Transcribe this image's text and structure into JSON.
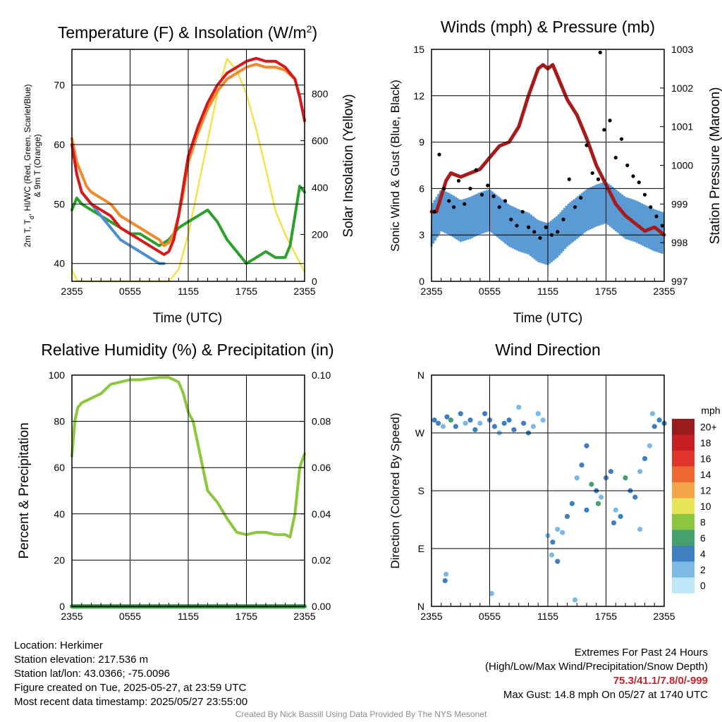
{
  "panels": {
    "temperature": {
      "title": "Temperature (F) & Insolation (W/m",
      "title_sup": "2",
      "title_close": ")",
      "ylabel_left_line1": "2m T, T",
      "ylabel_left_sub": "d",
      "ylabel_left_line1b": ", HI/WC (Red, Green, Scarlet/Blue)",
      "ylabel_left_line2": "& 9m T (Orange)",
      "ylabel_right": "Solar Insolation (Yellow)",
      "xlabel": "Time (UTC)"
    },
    "winds": {
      "title": "Winds (mph) & Pressure (mb)",
      "ylabel_left": "Sonic Wind & Gust (Blue, Black)",
      "ylabel_right": "Station Pressure (Maroon)",
      "xlabel": "Time (UTC)"
    },
    "humidity": {
      "title": "Relative Humidity (%) & Precipitation (in)",
      "ylabel_left": "Percent & Precipitation"
    },
    "direction": {
      "title": "Wind Direction",
      "ylabel_left": "Direction (Colored By Speed)",
      "legend_title": "mph"
    }
  },
  "footer": {
    "location": "Location: Herkimer",
    "elevation": "Station elevation: 217.536 m",
    "latlon": "Station lat/lon: 43.0366; -75.0096",
    "created": "Figure created on Tue, 2025-05-27, at 23:59 UTC",
    "recent": "Most recent data timestamp: 2025/05/27 23:55:00",
    "extremes_title": "Extremes For Past 24 Hours",
    "extremes_sub": "(High/Low/Max Wind/Precipitation/Snow Depth)",
    "extremes_values": "75.3/41.1/7.8/0/-999",
    "max_gust": "Max Gust: 14.8 mph On 05/27 at 1740 UTC",
    "credit": "Created By Nick Bassill Using Data Provided By The NYS Mesonet"
  },
  "colors": {
    "temp": "#d7191c",
    "dewpoint": "#2ca02c",
    "heat_index": "#c01f26",
    "wind_chill": "#4a90d0",
    "temp_9m": "#f08a2a",
    "insolation": "#f5e14a",
    "wind": "#5b9bd5",
    "gust": "#000000",
    "pressure": "#a61c1c",
    "rh": "#8dc63f",
    "precip": "#2e9e3e"
  },
  "chart_data": [
    {
      "type": "line",
      "panel": "temperature",
      "x_ticks": [
        "2355",
        "0555",
        "1155",
        "1755",
        "2355"
      ],
      "x_hours": [
        0,
        6,
        12,
        18,
        24
      ],
      "xlim_hours": [
        0,
        24
      ],
      "ylim": [
        37,
        76
      ],
      "yticks": [
        40,
        50,
        60,
        70
      ],
      "y2lim": [
        0,
        990
      ],
      "y2ticks": [
        0,
        200,
        400,
        600,
        800
      ],
      "grid": true,
      "series": [
        {
          "key": "temp",
          "axis": "left",
          "x": [
            0,
            0.5,
            1,
            1.5,
            2,
            3,
            4,
            5,
            6,
            7,
            8,
            9,
            9.5,
            10,
            10.5,
            11,
            11.5,
            12,
            13,
            14,
            15,
            16,
            17,
            18,
            19,
            20,
            21,
            22,
            23,
            23.5,
            24
          ],
          "y": [
            60,
            55,
            52,
            51,
            50,
            49,
            48,
            46,
            45,
            44,
            43,
            42,
            41.5,
            42,
            44,
            48,
            53,
            58,
            63,
            67,
            70,
            72,
            73,
            74,
            74.5,
            74,
            74,
            73,
            71,
            68,
            64
          ]
        },
        {
          "key": "temp_9m",
          "axis": "left",
          "x": [
            0,
            0.5,
            1,
            1.5,
            2,
            3,
            4,
            5,
            6,
            7,
            8,
            9,
            9.5,
            10,
            10.5,
            11,
            11.5,
            12,
            13,
            14,
            15,
            16,
            17,
            18,
            19,
            20,
            21,
            22,
            23,
            23.5,
            24
          ],
          "y": [
            61,
            57,
            55,
            53,
            52,
            51,
            50,
            48,
            47,
            46,
            45,
            44,
            43,
            43.5,
            45,
            48,
            52,
            57,
            62,
            66,
            69,
            71,
            72,
            73,
            73.5,
            73,
            73,
            72.5,
            71,
            68,
            64
          ]
        },
        {
          "key": "wind_chill",
          "axis": "left",
          "x": [
            1,
            2,
            3,
            4,
            5,
            6,
            7,
            8,
            9,
            9.5
          ],
          "y": [
            52,
            50,
            48,
            46,
            44,
            43,
            42,
            41,
            40,
            40
          ]
        },
        {
          "key": "dewpoint",
          "axis": "left",
          "x": [
            0,
            0.5,
            1,
            2,
            3,
            4,
            5,
            6,
            7,
            8,
            9,
            10,
            11,
            12,
            13,
            14,
            15,
            16,
            17,
            18,
            19,
            20,
            21,
            22,
            22.5,
            23,
            23.5,
            24
          ],
          "y": [
            49,
            51,
            50,
            49,
            48,
            47,
            46,
            45,
            45,
            44,
            43,
            44,
            46,
            47,
            48,
            49,
            47,
            44,
            42,
            40,
            41,
            42,
            41,
            41,
            43,
            48,
            53,
            52
          ]
        },
        {
          "key": "insolation",
          "axis": "right",
          "x": [
            0,
            0.5,
            1,
            2,
            3,
            4,
            5,
            6,
            7,
            8,
            9,
            10,
            11,
            12,
            13,
            14,
            15,
            16,
            17,
            18,
            19,
            20,
            21,
            22,
            23,
            24
          ],
          "y": [
            50,
            5,
            0,
            0,
            0,
            0,
            0,
            0,
            0,
            0,
            0,
            0,
            50,
            200,
            400,
            600,
            800,
            950,
            900,
            800,
            650,
            480,
            300,
            200,
            120,
            40
          ]
        }
      ]
    },
    {
      "type": "line",
      "panel": "winds",
      "x_ticks": [
        "2355",
        "0555",
        "1155",
        "1755",
        "2355"
      ],
      "x_hours": [
        0,
        6,
        12,
        18,
        24
      ],
      "xlim_hours": [
        0,
        24
      ],
      "ylim": [
        0,
        15
      ],
      "yticks": [
        0,
        3,
        6,
        9,
        12,
        15
      ],
      "y2lim": [
        997,
        1003
      ],
      "y2ticks": [
        997,
        998,
        999,
        1000,
        1001,
        1002,
        1003
      ],
      "grid": true,
      "series": [
        {
          "key": "wind",
          "axis": "left",
          "name": "Sonic Wind",
          "x": [
            0,
            1,
            2,
            3,
            4,
            5,
            6,
            7,
            8,
            9,
            10,
            11,
            12,
            13,
            14,
            15,
            16,
            17,
            18,
            19,
            20,
            21,
            22,
            23,
            24
          ],
          "y": [
            3.5,
            4.5,
            4.2,
            3.8,
            4,
            4.3,
            4.5,
            4,
            3.5,
            3.2,
            3,
            2.5,
            2.3,
            2.8,
            3.5,
            4,
            4.5,
            4.8,
            5,
            4.5,
            4,
            3.8,
            3.5,
            3.2,
            3
          ]
        },
        {
          "key": "gust",
          "axis": "left",
          "name": "Gust",
          "style": "points",
          "x": [
            0.3,
            0.8,
            1.3,
            1.8,
            2.3,
            2.8,
            3.4,
            4,
            4.6,
            5.2,
            5.8,
            6.4,
            7,
            7.6,
            8.2,
            8.8,
            9.4,
            10,
            10.6,
            11.2,
            11.8,
            12.4,
            13,
            13.6,
            14.2,
            14.8,
            15.4,
            16,
            16.6,
            17.2,
            17.4,
            17.8,
            18.4,
            19,
            19.6,
            20.2,
            20.8,
            21.4,
            22,
            22.6,
            23.2,
            23.8
          ],
          "y": [
            4.5,
            8.2,
            6,
            5.2,
            4.8,
            6.5,
            5,
            6,
            7.2,
            5.6,
            6.2,
            5.5,
            4.8,
            5.2,
            4,
            3.6,
            4.5,
            3.5,
            3.2,
            2.8,
            3.5,
            3,
            3.2,
            4,
            6.6,
            4.8,
            5.4,
            8.8,
            7,
            6.6,
            14.8,
            9.8,
            10.4,
            8,
            9.2,
            7.5,
            6.8,
            6.4,
            5.6,
            4.8,
            4.2,
            3.6
          ]
        },
        {
          "key": "pressure",
          "axis": "right",
          "name": "Station Pressure",
          "x": [
            0,
            0.5,
            1,
            1.5,
            2,
            3,
            4,
            5,
            6,
            7,
            8,
            9,
            10,
            11,
            11.5,
            12,
            12.5,
            13,
            14,
            15,
            16,
            17,
            18,
            19,
            20,
            21,
            22,
            23,
            24
          ],
          "y": [
            998.8,
            998.8,
            999.2,
            999.6,
            999.8,
            999.7,
            999.8,
            999.9,
            1000.2,
            1000.5,
            1000.6,
            1001.0,
            1001.8,
            1002.5,
            1002.6,
            1002.5,
            1002.6,
            1002.3,
            1001.7,
            1001.3,
            1000.7,
            1000.0,
            999.5,
            999.0,
            998.7,
            998.5,
            998.3,
            998.4,
            998.2
          ]
        }
      ]
    },
    {
      "type": "line",
      "panel": "humidity",
      "x_ticks": [
        "2355",
        "0555",
        "1155",
        "1755",
        "2355"
      ],
      "x_hours": [
        0,
        6,
        12,
        18,
        24
      ],
      "xlim_hours": [
        0,
        24
      ],
      "ylim": [
        0,
        100
      ],
      "yticks": [
        0,
        20,
        40,
        60,
        80,
        100
      ],
      "y2lim": [
        0,
        0.1
      ],
      "y2ticks": [
        0.0,
        0.02,
        0.04,
        0.06,
        0.08,
        0.1
      ],
      "y2ticklabels": [
        "0.00",
        "0.02",
        "0.04",
        "0.06",
        "0.08",
        "0.10"
      ],
      "grid": true,
      "series": [
        {
          "key": "rh",
          "axis": "left",
          "name": "Relative Humidity",
          "x": [
            0,
            0.3,
            0.6,
            1,
            2,
            3,
            4,
            5,
            6,
            7,
            8,
            9,
            10,
            11,
            11.5,
            12,
            12.5,
            13,
            14,
            15,
            16,
            17,
            18,
            19,
            20,
            21,
            22,
            22.5,
            23,
            23.5,
            24
          ],
          "y": [
            65,
            80,
            86,
            88,
            90,
            92,
            96,
            97,
            98,
            98,
            98.5,
            99,
            99,
            97,
            92,
            84,
            80,
            70,
            50,
            45,
            38,
            32,
            31,
            32,
            32,
            31,
            31,
            30,
            40,
            60,
            66
          ]
        },
        {
          "key": "precip",
          "axis": "right",
          "name": "Precipitation",
          "x": [
            0,
            24
          ],
          "y": [
            0,
            0
          ]
        }
      ]
    },
    {
      "type": "scatter",
      "panel": "direction",
      "x_ticks": [
        "2355",
        "0555",
        "1155",
        "1755",
        "2355"
      ],
      "x_hours": [
        0,
        6,
        12,
        18,
        24
      ],
      "xlim_hours": [
        0,
        24
      ],
      "ylim": [
        0,
        360
      ],
      "yticks": [
        0,
        90,
        180,
        270,
        360
      ],
      "yticklabels": [
        "N",
        "E",
        "S",
        "W",
        "N"
      ],
      "grid": true,
      "color_scale": {
        "labels": [
          "0",
          "2",
          "4",
          "6",
          "8",
          "10",
          "12",
          "14",
          "16",
          "18",
          "20+"
        ],
        "colors": [
          "#bfe6f7",
          "#7cb9e4",
          "#3f7fc0",
          "#46a06e",
          "#8cc63f",
          "#e9e35a",
          "#f6a646",
          "#ee6a33",
          "#df3429",
          "#c51f24",
          "#9a1b1e"
        ]
      },
      "x": [
        0.3,
        0.7,
        1.2,
        1.6,
        2.0,
        2.5,
        3,
        3.5,
        4,
        4.5,
        5,
        5.5,
        6,
        6.5,
        7,
        7.5,
        8,
        8.5,
        9,
        9.5,
        10,
        10.5,
        11,
        11.5,
        12,
        12.5,
        13,
        13.5,
        14,
        14.5,
        15,
        15.5,
        16,
        16.5,
        17,
        17.5,
        18,
        18.5,
        19,
        19.5,
        20,
        20.5,
        21,
        21.5,
        22,
        22.5,
        23,
        23.5,
        24,
        1.4,
        1.5,
        6.2,
        12.4,
        13,
        14.8,
        16,
        17.2,
        18.8,
        21.5,
        22.8
      ],
      "y": [
        290,
        285,
        280,
        295,
        290,
        280,
        300,
        285,
        290,
        275,
        285,
        300,
        290,
        280,
        270,
        285,
        290,
        275,
        310,
        285,
        270,
        280,
        300,
        290,
        110,
        100,
        120,
        115,
        140,
        160,
        200,
        220,
        250,
        190,
        180,
        170,
        200,
        210,
        150,
        140,
        200,
        180,
        170,
        210,
        230,
        250,
        280,
        290,
        285,
        40,
        50,
        20,
        80,
        70,
        10,
        150,
        160,
        130,
        120,
        300
      ],
      "speed": [
        3,
        4,
        2,
        3,
        6,
        4,
        3,
        2,
        4,
        3,
        2,
        4,
        3,
        4,
        2,
        3,
        4,
        3,
        2,
        4,
        3,
        2,
        2,
        1,
        1,
        3,
        2,
        2,
        4,
        3,
        2,
        3,
        4,
        6,
        3,
        2,
        3,
        4,
        2,
        3,
        6,
        4,
        3,
        2,
        3,
        2,
        3,
        4,
        3,
        3,
        2,
        1,
        2,
        3,
        2,
        4,
        5,
        3,
        2,
        1
      ]
    }
  ]
}
